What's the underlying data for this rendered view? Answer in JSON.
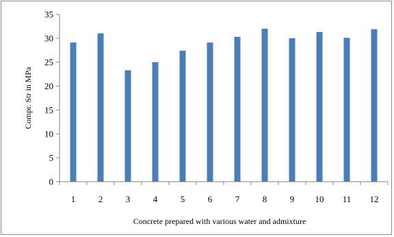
{
  "chart_data": {
    "type": "bar",
    "categories": [
      "1",
      "2",
      "3",
      "4",
      "5",
      "6",
      "7",
      "8",
      "9",
      "10",
      "11",
      "12"
    ],
    "values": [
      29.1,
      31.0,
      23.3,
      25.0,
      27.4,
      29.1,
      30.3,
      32.0,
      30.0,
      31.3,
      30.1,
      31.9
    ],
    "title": "",
    "xlabel": "Concrete prepared with various water and admixture",
    "ylabel": "Compr. Str in MPa",
    "ylim": [
      0,
      35
    ],
    "yticks": [
      0,
      5,
      10,
      15,
      20,
      25,
      30,
      35
    ],
    "grid": false,
    "legend": "none",
    "bar_color": "#4a7ebb"
  }
}
